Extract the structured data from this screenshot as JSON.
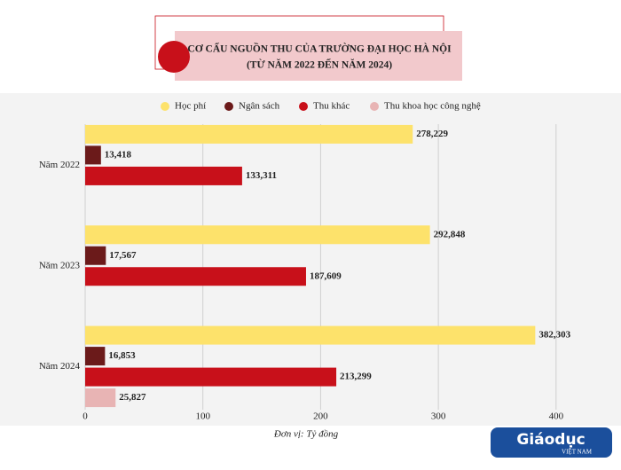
{
  "chart_data": {
    "type": "hbar",
    "title": "CƠ CẤU NGUỒN THU CỦA TRƯỜNG ĐẠI HỌC HÀ NỘI",
    "subtitle": "(TỪ NĂM 2022 ĐẾN NĂM 2024)",
    "categories": [
      "Năm 2022",
      "Năm 2023",
      "Năm 2024"
    ],
    "series": [
      {
        "name": "Học phí",
        "color": "#fde26b",
        "values": [
          278.229,
          292.848,
          382.303
        ],
        "value_labels": [
          "278,229",
          "292,848",
          "382,303"
        ]
      },
      {
        "name": "Ngân sách",
        "color": "#6b1a1a",
        "values": [
          13.418,
          17.567,
          16.853
        ],
        "value_labels": [
          "13,418",
          "17,567",
          "16,853"
        ]
      },
      {
        "name": "Thu khác",
        "color": "#c8101a",
        "values": [
          133.311,
          187.609,
          213.299
        ],
        "value_labels": [
          "133,311",
          "187,609",
          "213,299"
        ]
      },
      {
        "name": "Thu khoa học công nghệ",
        "color": "#e8b4b4",
        "values": [
          null,
          null,
          25.827
        ],
        "value_labels": [
          null,
          null,
          "25,827"
        ]
      }
    ],
    "xlim": [
      0,
      425
    ],
    "xticks": [
      0,
      100,
      200,
      300,
      400
    ],
    "grid": true,
    "unit_note": "Đơn vị: Tỷ đồng"
  },
  "logo": {
    "text": "Giáodục",
    "sub": "VIỆT NAM"
  }
}
